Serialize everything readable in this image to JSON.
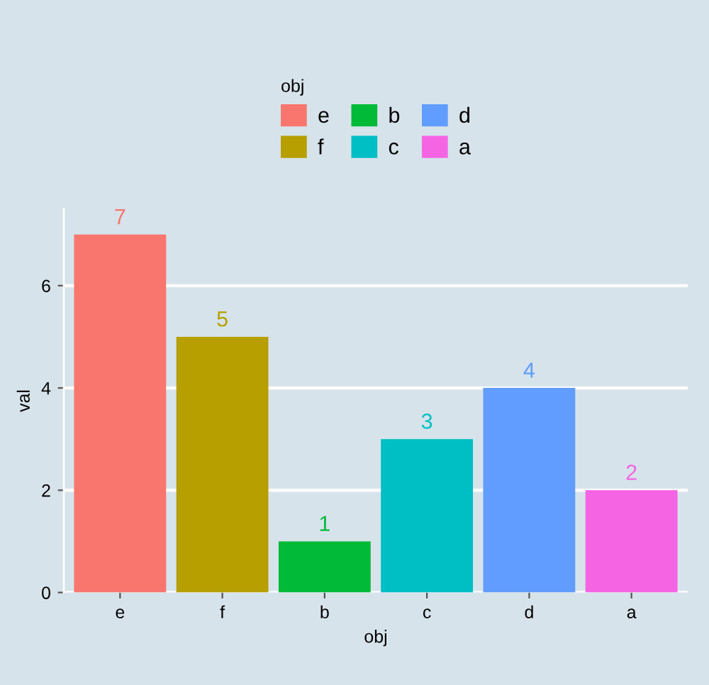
{
  "chart_data": {
    "type": "bar",
    "xlabel": "obj",
    "ylabel": "val",
    "legend_title": "obj",
    "categories": [
      "e",
      "f",
      "b",
      "c",
      "d",
      "a"
    ],
    "series": [
      {
        "name": "e",
        "color": "#f8766d",
        "values": [
          7,
          null,
          null,
          null,
          null,
          null
        ]
      },
      {
        "name": "f",
        "color": "#b79f00",
        "values": [
          null,
          5,
          null,
          null,
          null,
          null
        ]
      },
      {
        "name": "b",
        "color": "#00ba38",
        "values": [
          null,
          null,
          1,
          null,
          null,
          null
        ]
      },
      {
        "name": "c",
        "color": "#00bfc4",
        "values": [
          null,
          null,
          null,
          3,
          null,
          null
        ]
      },
      {
        "name": "d",
        "color": "#619cff",
        "values": [
          null,
          null,
          null,
          null,
          4,
          null
        ]
      },
      {
        "name": "a",
        "color": "#f564e3",
        "values": [
          null,
          null,
          null,
          null,
          null,
          2
        ]
      }
    ],
    "data_labels": true,
    "ylim": [
      0,
      7.5
    ],
    "yticks": [
      0,
      2,
      4,
      6
    ],
    "grid": "y",
    "legend": "top"
  }
}
